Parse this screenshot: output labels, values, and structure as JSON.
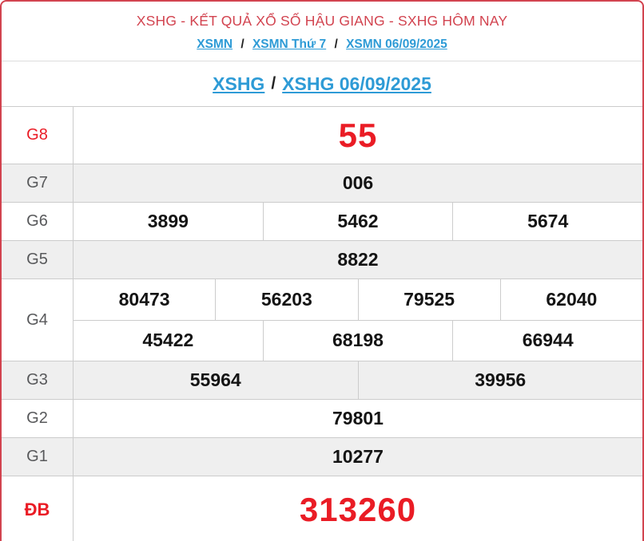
{
  "header": {
    "title": "XSHG - KẾT QUẢ XỔ SỐ HẬU GIANG - SXHG HÔM NAY",
    "breadcrumb": {
      "separator": "/",
      "items": [
        {
          "label": "XSMN"
        },
        {
          "label": "XSMN Thứ 7"
        },
        {
          "label": "XSMN 06/09/2025"
        }
      ]
    },
    "subtitle": {
      "separator": "/",
      "links": [
        {
          "label": "XSHG"
        },
        {
          "label": "XSHG 06/09/2025"
        }
      ]
    }
  },
  "table": {
    "rows": [
      {
        "label": "G8",
        "lines": [
          [
            "55"
          ]
        ]
      },
      {
        "label": "G7",
        "lines": [
          [
            "006"
          ]
        ]
      },
      {
        "label": "G6",
        "lines": [
          [
            "3899",
            "5462",
            "5674"
          ]
        ]
      },
      {
        "label": "G5",
        "lines": [
          [
            "8822"
          ]
        ]
      },
      {
        "label": "G4",
        "lines": [
          [
            "80473",
            "56203",
            "79525",
            "62040"
          ],
          [
            "45422",
            "68198",
            "66944"
          ]
        ]
      },
      {
        "label": "G3",
        "lines": [
          [
            "55964",
            "39956"
          ]
        ]
      },
      {
        "label": "G2",
        "lines": [
          [
            "79801"
          ]
        ]
      },
      {
        "label": "G1",
        "lines": [
          [
            "10277"
          ]
        ]
      },
      {
        "label": "ĐB",
        "lines": [
          [
            "313260"
          ]
        ]
      }
    ]
  },
  "colors": {
    "panel_border_red": "#d2434f",
    "title_red": "#d2434f",
    "accent_red": "#ea1c25",
    "link_blue": "#2e9bd6",
    "row_alt_bg": "#efefef",
    "grid_border": "#cccccc",
    "label_gray": "#58595b",
    "number_black": "#141414"
  }
}
